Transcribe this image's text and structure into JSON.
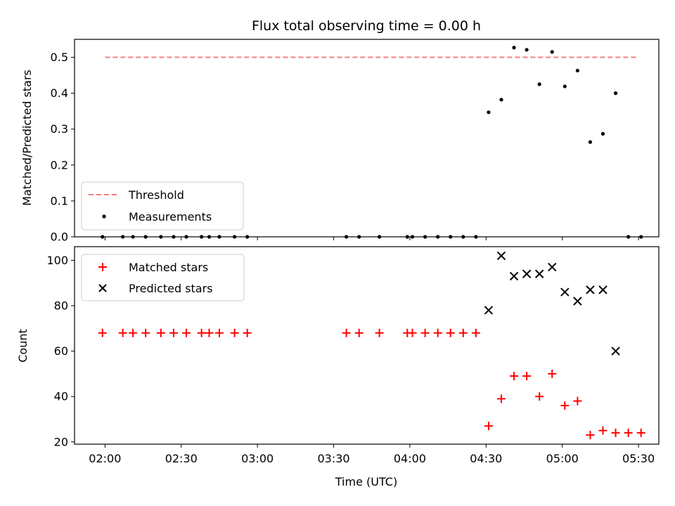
{
  "chart_data": [
    {
      "type": "scatter",
      "title": "Flux total observing time = 0.00 h",
      "xlabel": "",
      "ylabel": "Matched/Predicted stars",
      "xlim": [
        "01:48",
        "05:38"
      ],
      "ylim": [
        0,
        0.55
      ],
      "yticks": [
        0.0,
        0.1,
        0.2,
        0.3,
        0.4,
        0.5
      ],
      "ytick_labels": [
        "0.0",
        "0.1",
        "0.2",
        "0.3",
        "0.4",
        "0.5"
      ],
      "xticks": [
        "02:00",
        "02:30",
        "03:00",
        "03:30",
        "04:00",
        "04:30",
        "05:00",
        "05:30"
      ],
      "legend_position": "lower-left",
      "series": [
        {
          "name": "Threshold",
          "style": "dashed-line",
          "color": "#f08080",
          "x": [
            "02:00",
            "05:30"
          ],
          "y": [
            0.5,
            0.5
          ]
        },
        {
          "name": "Measurements",
          "style": "dot",
          "color": "#000000",
          "x": [
            "01:59",
            "02:07",
            "02:11",
            "02:16",
            "02:22",
            "02:27",
            "02:32",
            "02:38",
            "02:41",
            "02:45",
            "02:51",
            "02:56",
            "03:35",
            "03:40",
            "03:48",
            "03:59",
            "04:01",
            "04:06",
            "04:11",
            "04:16",
            "04:21",
            "04:26",
            "04:31",
            "04:36",
            "04:41",
            "04:46",
            "04:51",
            "04:56",
            "05:01",
            "05:06",
            "05:11",
            "05:16",
            "05:21",
            "05:26",
            "05:31"
          ],
          "y": [
            0,
            0,
            0,
            0,
            0,
            0,
            0,
            0,
            0,
            0,
            0,
            0,
            0,
            0,
            0,
            0,
            0,
            0,
            0,
            0,
            0,
            0,
            0.347,
            0.382,
            0.527,
            0.521,
            0.425,
            0.515,
            0.419,
            0.463,
            0.264,
            0.287,
            0.4,
            0,
            0
          ]
        }
      ]
    },
    {
      "type": "scatter",
      "title": "",
      "xlabel": "Time (UTC)",
      "ylabel": "Count",
      "xlim": [
        "01:48",
        "05:38"
      ],
      "ylim": [
        19,
        106
      ],
      "yticks": [
        20,
        40,
        60,
        80,
        100
      ],
      "ytick_labels": [
        "20",
        "40",
        "60",
        "80",
        "100"
      ],
      "xticks": [
        "02:00",
        "02:30",
        "03:00",
        "03:30",
        "04:00",
        "04:30",
        "05:00",
        "05:30"
      ],
      "xtick_labels": [
        "02:00",
        "02:30",
        "03:00",
        "03:30",
        "04:00",
        "04:30",
        "05:00",
        "05:30"
      ],
      "legend_position": "upper-left",
      "series": [
        {
          "name": "Matched stars",
          "style": "plus",
          "color": "#ff0000",
          "x": [
            "01:59",
            "02:07",
            "02:11",
            "02:16",
            "02:22",
            "02:27",
            "02:32",
            "02:38",
            "02:41",
            "02:45",
            "02:51",
            "02:56",
            "03:35",
            "03:40",
            "03:48",
            "03:59",
            "04:01",
            "04:06",
            "04:11",
            "04:16",
            "04:21",
            "04:26",
            "04:31",
            "04:36",
            "04:41",
            "04:46",
            "04:51",
            "04:56",
            "05:01",
            "05:06",
            "05:11",
            "05:16",
            "05:21",
            "05:26",
            "05:31"
          ],
          "y": [
            68,
            68,
            68,
            68,
            68,
            68,
            68,
            68,
            68,
            68,
            68,
            68,
            68,
            68,
            68,
            68,
            68,
            68,
            68,
            68,
            68,
            68,
            27,
            39,
            49,
            49,
            40,
            50,
            36,
            38,
            23,
            25,
            24,
            24,
            24
          ]
        },
        {
          "name": "Predicted stars",
          "style": "x",
          "color": "#000000",
          "x": [
            "04:31",
            "04:36",
            "04:41",
            "04:46",
            "04:51",
            "04:56",
            "05:01",
            "05:06",
            "05:11",
            "05:16",
            "05:21"
          ],
          "y": [
            78,
            102,
            93,
            94,
            94,
            97,
            86,
            82,
            87,
            87,
            60
          ]
        }
      ]
    }
  ]
}
